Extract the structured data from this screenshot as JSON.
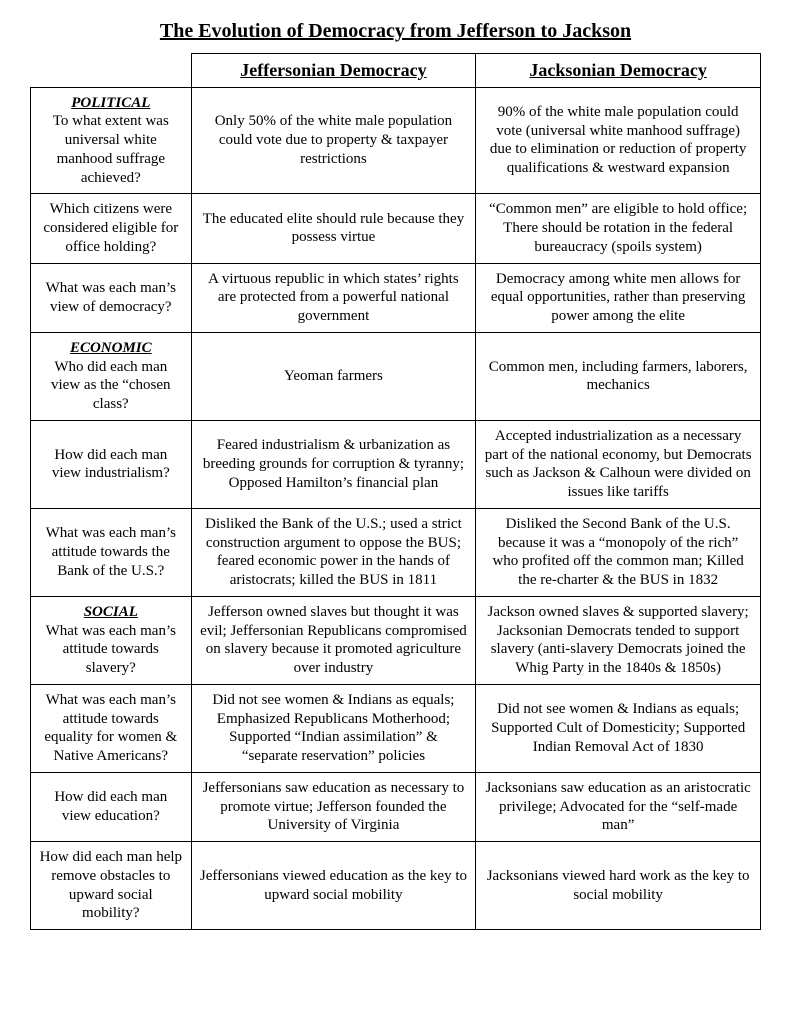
{
  "title": "The Evolution of Democracy from Jefferson to Jackson",
  "headers": {
    "jefferson": "Jeffersonian Democracy",
    "jackson": "Jacksonian Democracy"
  },
  "sections": {
    "political_label": "POLITICAL",
    "economic_label": "ECONOMIC",
    "social_label": "SOCIAL"
  },
  "rows": [
    {
      "q": "To what extent was universal white manhood suffrage achieved?",
      "j1": "Only 50% of the white male population could vote due to property & taxpayer restrictions",
      "j2": "90% of the white male population could vote (universal white manhood suffrage) due to elimination or reduction of property qualifications & westward expansion"
    },
    {
      "q": "Which citizens were considered eligible for office holding?",
      "j1": "The educated elite should rule because they possess virtue",
      "j2": "“Common men” are eligible to hold office; There should be rotation in the federal bureaucracy (spoils system)"
    },
    {
      "q": "What was each man’s view of democracy?",
      "j1": "A virtuous republic in which states’ rights are protected from a powerful national government",
      "j2": "Democracy among white men allows for equal opportunities, rather than preserving power among the elite"
    },
    {
      "q": "Who did each man view as the “chosen class?",
      "j1": "Yeoman farmers",
      "j2": "Common men, including farmers, laborers, mechanics"
    },
    {
      "q": "How did each man view industrialism?",
      "j1": "Feared industrialism & urbanization as breeding grounds for corruption & tyranny; Opposed Hamilton’s financial plan",
      "j2": "Accepted industrialization as a necessary part of the national economy, but Democrats such as Jackson & Calhoun were divided on issues like tariffs"
    },
    {
      "q": "What was each man’s attitude towards the Bank of the U.S.?",
      "j1": "Disliked the Bank of the U.S.; used a strict construction argument to oppose the BUS; feared economic power in the hands of aristocrats; killed the BUS in 1811",
      "j2": "Disliked the Second Bank of the U.S. because it was a “monopoly of the rich” who profited off the common man; Killed the re-charter & the BUS in 1832"
    },
    {
      "q": "What was each man’s attitude towards slavery?",
      "j1": "Jefferson owned slaves but thought it was evil; Jeffersonian Republicans compromised on slavery because it promoted agriculture over industry",
      "j2": "Jackson owned slaves & supported slavery; Jacksonian Democrats tended to support slavery (anti-slavery Democrats joined the Whig Party in the 1840s & 1850s)"
    },
    {
      "q": "What was each man’s attitude towards equality for women & Native Americans?",
      "j1": "Did not see women & Indians as equals; Emphasized Republicans Motherhood; Supported “Indian assimilation” & “separate reservation” policies",
      "j2": "Did not see women & Indians as equals; Supported Cult of Domesticity; Supported Indian Removal Act of 1830"
    },
    {
      "q": "How did each man view education?",
      "j1": "Jeffersonians saw education as necessary to promote virtue; Jefferson founded the University of Virginia",
      "j2": "Jacksonians saw education as an aristocratic privilege; Advocated for the “self-made man”"
    },
    {
      "q": "How did each man help remove obstacles to upward social mobility?",
      "j1": "Jeffersonians viewed education as the key to upward social mobility",
      "j2": "Jacksonians viewed hard work as the key to social mobility"
    }
  ]
}
